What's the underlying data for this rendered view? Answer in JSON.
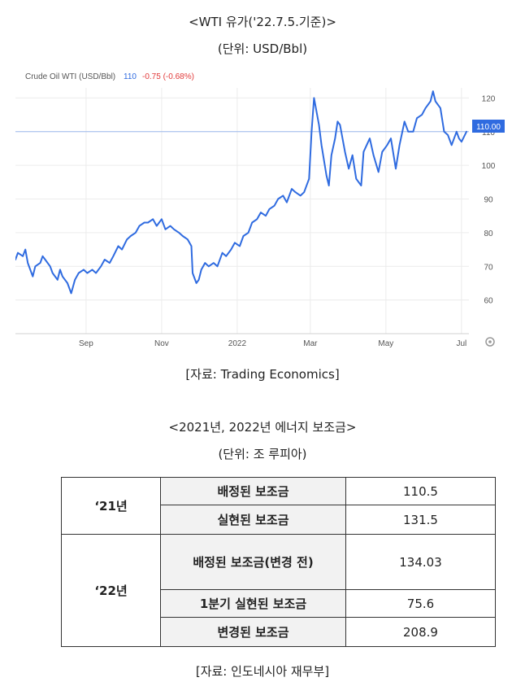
{
  "chart_caption": {
    "title": "<WTI 유가('22.7.5.기준)>",
    "unit": "(단위: USD/Bbl)",
    "source": "[자료: Trading Economics]"
  },
  "chart_data": {
    "type": "line",
    "title": "Crude Oil WTI (USD/Bbl)",
    "header_value": "110",
    "header_change": "-0.75 (-0.68%)",
    "last_label": "110.00",
    "x_tick_labels": [
      "Sep",
      "Nov",
      "2022",
      "Mar",
      "May",
      "Jul"
    ],
    "y_ticks": [
      60,
      70,
      80,
      90,
      100,
      110,
      120
    ],
    "ylim": [
      50,
      123
    ],
    "reference_line": 110,
    "grid": true,
    "series": [
      {
        "color": "#2f6be0",
        "x": [
          "2021-07-06",
          "2021-07-08",
          "2021-07-12",
          "2021-07-14",
          "2021-07-16",
          "2021-07-20",
          "2021-07-22",
          "2021-07-26",
          "2021-07-28",
          "2021-07-30",
          "2021-08-03",
          "2021-08-05",
          "2021-08-09",
          "2021-08-11",
          "2021-08-13",
          "2021-08-17",
          "2021-08-20",
          "2021-08-23",
          "2021-08-26",
          "2021-08-30",
          "2021-09-02",
          "2021-09-06",
          "2021-09-09",
          "2021-09-13",
          "2021-09-16",
          "2021-09-20",
          "2021-09-23",
          "2021-09-27",
          "2021-09-30",
          "2021-10-04",
          "2021-10-07",
          "2021-10-11",
          "2021-10-14",
          "2021-10-18",
          "2021-10-21",
          "2021-10-25",
          "2021-10-28",
          "2021-11-01",
          "2021-11-04",
          "2021-11-08",
          "2021-11-11",
          "2021-11-15",
          "2021-11-18",
          "2021-11-22",
          "2021-11-25",
          "2021-11-26",
          "2021-11-29",
          "2021-12-01",
          "2021-12-03",
          "2021-12-06",
          "2021-12-09",
          "2021-12-13",
          "2021-12-16",
          "2021-12-20",
          "2021-12-23",
          "2021-12-27",
          "2021-12-30",
          "2022-01-03",
          "2022-01-06",
          "2022-01-10",
          "2022-01-13",
          "2022-01-17",
          "2022-01-20",
          "2022-01-24",
          "2022-01-27",
          "2022-01-31",
          "2022-02-03",
          "2022-02-07",
          "2022-02-10",
          "2022-02-14",
          "2022-02-17",
          "2022-02-21",
          "2022-02-24",
          "2022-02-28",
          "2022-03-02",
          "2022-03-04",
          "2022-03-08",
          "2022-03-10",
          "2022-03-14",
          "2022-03-16",
          "2022-03-18",
          "2022-03-21",
          "2022-03-23",
          "2022-03-25",
          "2022-03-29",
          "2022-04-01",
          "2022-04-04",
          "2022-04-07",
          "2022-04-11",
          "2022-04-13",
          "2022-04-18",
          "2022-04-21",
          "2022-04-25",
          "2022-04-28",
          "2022-05-02",
          "2022-05-05",
          "2022-05-09",
          "2022-05-12",
          "2022-05-16",
          "2022-05-19",
          "2022-05-23",
          "2022-05-26",
          "2022-05-30",
          "2022-06-02",
          "2022-06-06",
          "2022-06-08",
          "2022-06-10",
          "2022-06-14",
          "2022-06-17",
          "2022-06-20",
          "2022-06-23",
          "2022-06-27",
          "2022-06-29",
          "2022-07-01",
          "2022-07-05"
        ],
        "y": [
          72,
          74,
          73,
          75,
          71,
          67,
          70,
          71,
          73,
          72,
          70,
          68,
          66,
          69,
          67,
          65,
          62,
          66,
          68,
          69,
          68,
          69,
          68,
          70,
          72,
          71,
          73,
          76,
          75,
          78,
          79,
          80,
          82,
          83,
          83,
          84,
          82,
          84,
          81,
          82,
          81,
          80,
          79,
          78,
          76,
          68,
          65,
          66,
          69,
          71,
          70,
          71,
          70,
          74,
          73,
          75,
          77,
          76,
          79,
          80,
          83,
          84,
          86,
          85,
          87,
          88,
          90,
          91,
          89,
          93,
          92,
          91,
          92,
          96,
          110,
          120,
          112,
          106,
          97,
          94,
          103,
          108,
          113,
          112,
          104,
          99,
          103,
          96,
          94,
          104,
          108,
          103,
          98,
          104,
          106,
          108,
          99,
          106,
          113,
          110,
          110,
          114,
          115,
          117,
          119,
          122,
          119,
          117,
          110,
          109,
          106,
          110,
          108,
          107,
          110
        ]
      }
    ]
  },
  "table_caption": {
    "title": "<2021년, 2022년 에너지 보조금>",
    "unit": "(단위: 조 루피아)",
    "source": "[자료: 인도네시아 재무부]"
  },
  "table": {
    "groups": [
      {
        "year": "‘21년",
        "rows": [
          {
            "label": "배정된 보조금",
            "value": "110.5"
          },
          {
            "label": "실현된 보조금",
            "value": "131.5"
          }
        ]
      },
      {
        "year": "‘22년",
        "rows": [
          {
            "label": "배정된 보조금(변경 전)",
            "value": "134.03"
          },
          {
            "label": "1분기 실현된 보조금",
            "value": "75.6"
          },
          {
            "label": "변경된 보조금",
            "value": "208.9"
          }
        ]
      }
    ]
  }
}
